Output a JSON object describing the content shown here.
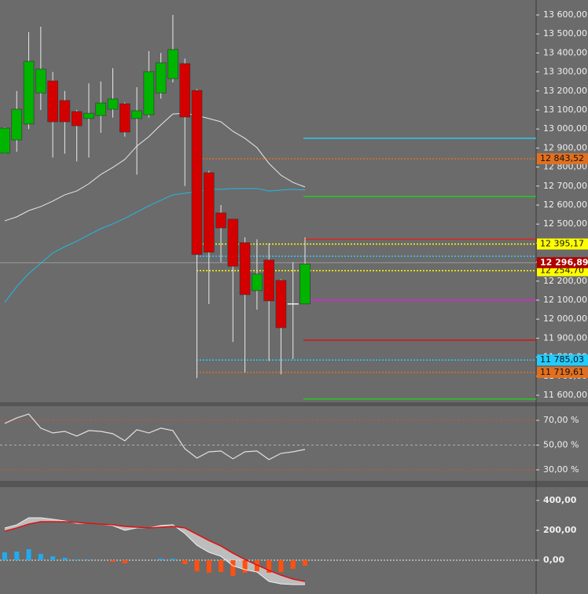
{
  "chart_data": [
    {
      "type": "candlestick",
      "categories": [
        null,
        null,
        null,
        null,
        null,
        null,
        null,
        null,
        null,
        null,
        null,
        null,
        null,
        null,
        null,
        null,
        null,
        null,
        null,
        null,
        null,
        null,
        null,
        null,
        null,
        null
      ],
      "open": [
        12873,
        12943,
        13026,
        13190,
        13253,
        13150,
        13092,
        13055,
        13071,
        13104,
        13133,
        13055,
        13075,
        13190,
        13265,
        13344,
        13203,
        12770,
        12559,
        12526,
        12402,
        12150,
        12311,
        12204,
        12080,
        12080
      ],
      "high": [
        13010,
        13200,
        13510,
        13538,
        13300,
        13200,
        13100,
        13240,
        13250,
        13320,
        13140,
        13220,
        13410,
        13400,
        13600,
        13370,
        13210,
        12780,
        12600,
        12526,
        12430,
        12420,
        12400,
        12210,
        12300,
        12430
      ],
      "low": [
        12870,
        12880,
        13000,
        13100,
        12850,
        12870,
        12830,
        12850,
        12980,
        13060,
        12960,
        12760,
        13060,
        13160,
        13245,
        12700,
        11690,
        12080,
        12300,
        11880,
        11720,
        12050,
        11780,
        11710,
        11790,
        12080
      ],
      "close": [
        13005,
        13104,
        13356,
        13315,
        13038,
        13038,
        13017,
        13083,
        13137,
        13158,
        12984,
        13096,
        13302,
        13348,
        13418,
        13063,
        12340,
        12352,
        12480,
        12278,
        12129,
        12237,
        12096,
        11955,
        12080,
        12290
      ],
      "up_color": "#00b400",
      "down_color": "#d40000",
      "series": [
        {
          "color": "#e8e8e8",
          "values": [
            12517,
            12538,
            12571,
            12592,
            12621,
            12654,
            12674,
            12712,
            12761,
            12798,
            12840,
            12910,
            12960,
            13022,
            13079,
            13083,
            13071,
            13055,
            13038,
            12988,
            12951,
            12902,
            12819,
            12757,
            12719,
            12695
          ]
        },
        {
          "color": "#22b8e8",
          "values": [
            12088,
            12171,
            12240,
            12294,
            12348,
            12381,
            12410,
            12443,
            12476,
            12501,
            12530,
            12563,
            12596,
            12625,
            12654,
            12662,
            12670,
            12683,
            12683,
            12687,
            12687,
            12687,
            12674,
            12679,
            12683,
            12679
          ]
        }
      ],
      "levels": [
        {
          "value": 12951,
          "color": "#33c8e8",
          "dash": false
        },
        {
          "value": 12843.52,
          "label": "12 843,52",
          "color": "#e07020",
          "dash": true
        },
        {
          "value": 12645,
          "color": "#22cc22",
          "dash": false
        },
        {
          "value": 12420,
          "color": "#dd2222",
          "dash": false
        },
        {
          "value": 12395.17,
          "label": "12 395,17",
          "color": "#ffff00",
          "dash": true
        },
        {
          "value": 12331,
          "color": "#33c8ff",
          "dash": true
        },
        {
          "value": 12254.7,
          "label": "12 254,70",
          "color": "#ffff00",
          "dash": true
        },
        {
          "value": 12100,
          "color": "#dd22dd",
          "dash": false
        },
        {
          "value": 11890,
          "color": "#dd1111",
          "dash": false
        },
        {
          "value": 11785.03,
          "label": "11 785,03",
          "color": "#22ccff",
          "dash": true
        },
        {
          "value": 11719.61,
          "label": "11 719,61",
          "color": "#e07020",
          "dash": true
        },
        {
          "value": 11580,
          "color": "#22cc22",
          "dash": false
        }
      ],
      "last": {
        "value": 12296.89,
        "label": "12 296,89",
        "color": "#b00000"
      },
      "ylim": [
        11562.8,
        13678.5
      ],
      "yticks": [
        {
          "value": 11600,
          "label": "11 600,00"
        },
        {
          "value": 11700,
          "label": "11 700,00"
        },
        {
          "value": 11800,
          "label": "11 800,00"
        },
        {
          "value": 11900,
          "label": "11 900,00"
        },
        {
          "value": 12000,
          "label": "12 000,00"
        },
        {
          "value": 12100,
          "label": "12 100,00"
        },
        {
          "value": 12200,
          "label": "12 200,00"
        },
        {
          "value": 12300,
          "label": "12 300,00"
        },
        {
          "value": 12400,
          "label": "12 400,00"
        },
        {
          "value": 12500,
          "label": "12 500,00"
        },
        {
          "value": 12600,
          "label": "12 600,00"
        },
        {
          "value": 12700,
          "label": "12 700,00"
        },
        {
          "value": 12800,
          "label": "12 800,00"
        },
        {
          "value": 12900,
          "label": "12 900,00"
        },
        {
          "value": 13000,
          "label": "13 000,00"
        },
        {
          "value": 13100,
          "label": "13 100,00"
        },
        {
          "value": 13200,
          "label": "13 200,00"
        },
        {
          "value": 13300,
          "label": "13 300,00"
        },
        {
          "value": 13400,
          "label": "13 400,00"
        },
        {
          "value": 13500,
          "label": "13 500,00"
        },
        {
          "value": 13600,
          "label": "13 600,00"
        }
      ]
    },
    {
      "type": "line",
      "series": [
        {
          "color": "#e0e0e0",
          "values": [
            67.5,
            71.9,
            75.1,
            63.7,
            59.8,
            61.1,
            57.3,
            61.7,
            61.1,
            59.2,
            53.5,
            62.4,
            59.8,
            63.7,
            61.7,
            47.1,
            39.5,
            44.6,
            45.2,
            38.9,
            44.6,
            45.2,
            38.3,
            43.3,
            44.6,
            46.5
          ]
        }
      ],
      "levels": [
        {
          "value": 70,
          "color": "#d05030"
        },
        {
          "value": 50,
          "color": "#b0b0b0"
        },
        {
          "value": 30,
          "color": "#d05030"
        }
      ],
      "ylim": [
        21.1,
        81.4
      ],
      "yticks": [
        {
          "value": 30,
          "label": "30,00 %"
        },
        {
          "value": 50,
          "label": "50,00 %"
        },
        {
          "value": 70,
          "label": "70,00 %"
        }
      ]
    },
    {
      "type": "macd",
      "macd": {
        "color": "#f0f0f0",
        "values": [
          216,
          237,
          284,
          284,
          274,
          263,
          247,
          247,
          242,
          232,
          200,
          216,
          216,
          232,
          237,
          179,
          100,
          53,
          26,
          -37,
          -63,
          -79,
          -142,
          -158,
          -163,
          -163
        ]
      },
      "signal": {
        "color": "#e01010",
        "values": [
          195,
          216,
          242,
          258,
          258,
          258,
          253,
          247,
          242,
          237,
          226,
          221,
          216,
          221,
          226,
          216,
          174,
          132,
          95,
          47,
          5,
          -32,
          -68,
          -100,
          -126,
          -142
        ]
      },
      "histogram": {
        "up_color": "#22aaee",
        "down_color": "#ff5010",
        "values": [
          53,
          58,
          74,
          42,
          26,
          16,
          5,
          5,
          0,
          -10,
          -21,
          0,
          0,
          10,
          10,
          -26,
          -74,
          -84,
          -79,
          -105,
          -84,
          -74,
          -84,
          -79,
          -58,
          -37
        ]
      },
      "ylim": [
        -226,
        489
      ],
      "yticks": [
        {
          "value": 0,
          "label": "0,00"
        },
        {
          "value": 200,
          "label": "200,00"
        },
        {
          "value": 400,
          "label": "400,00"
        }
      ]
    }
  ]
}
